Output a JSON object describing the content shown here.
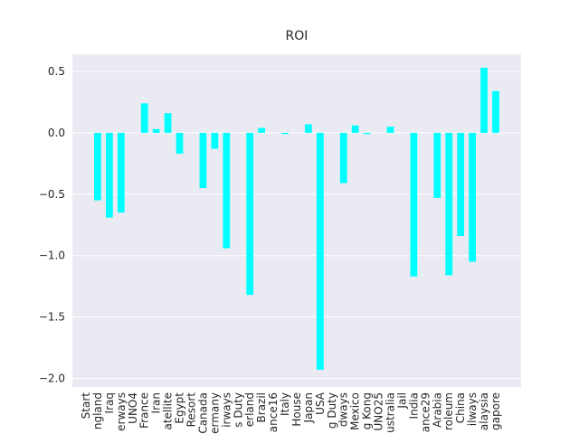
{
  "chart_data": {
    "type": "bar",
    "title": "ROI",
    "categories": [
      "Start",
      "ngland",
      "Iraq",
      "erways",
      "UNO4",
      "France",
      "Iran",
      "atellite",
      "Egypt",
      "Resort",
      "Canada",
      "ermany",
      "irways",
      "s Duty",
      "erland",
      "Brazil",
      "ance16",
      "Italy",
      "House",
      "Japan",
      "USA",
      "g Duty",
      "dways",
      "Mexico",
      "g Kong",
      "UNO25",
      "ustralia",
      "Jail",
      "India",
      "ance29",
      "Arabia",
      "roleum",
      "China",
      "ilways",
      "alaysia",
      "gapore"
    ],
    "values": [
      0,
      -0.55,
      -0.69,
      -0.65,
      0,
      0.24,
      0.03,
      0.16,
      -0.17,
      0,
      -0.45,
      -0.13,
      -0.94,
      0,
      -1.32,
      0.04,
      0,
      -0.01,
      0,
      0.07,
      -1.93,
      0,
      -0.41,
      0.06,
      -0.01,
      0,
      0.05,
      0,
      -1.17,
      0,
      -0.53,
      -1.16,
      -0.84,
      -1.05,
      0.53,
      0.34
    ],
    "color": "#00ffff",
    "ylim": [
      -2.07,
      0.64
    ],
    "yticks": [
      {
        "value": -2.0,
        "label": "−2.0"
      },
      {
        "value": -1.5,
        "label": "−1.5"
      },
      {
        "value": -1.0,
        "label": "−1.0"
      },
      {
        "value": -0.5,
        "label": "−0.5"
      },
      {
        "value": 0.0,
        "label": "0.0"
      },
      0.5
    ],
    "grid": true
  }
}
